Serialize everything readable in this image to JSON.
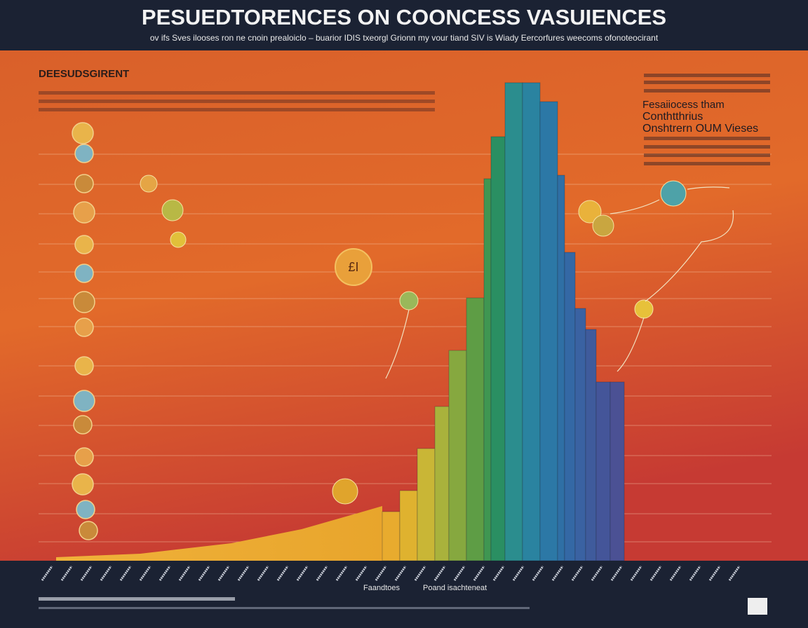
{
  "header": {
    "title": "PESUEDTORENCES ON COONCESS VASUIENCES",
    "subtitle": "ov ifs Sves ilooses ron ne cnoin prealoiclo – buarior IDIS txeorgl Grionn my vour tiand SIV is Wiady Eercorfures weecoms ofonoteocirant"
  },
  "panel_left": {
    "heading": "DEESUDSGIRENT"
  },
  "panel_right": {
    "heading_lines": [
      "Fesaiiocess tham",
      "Conthtthrius",
      "Onshtrern OUM Vieses"
    ]
  },
  "callout": "£I",
  "footer": {
    "labels": [
      "Faandtoes",
      "Poand isachteneat"
    ]
  }
}
